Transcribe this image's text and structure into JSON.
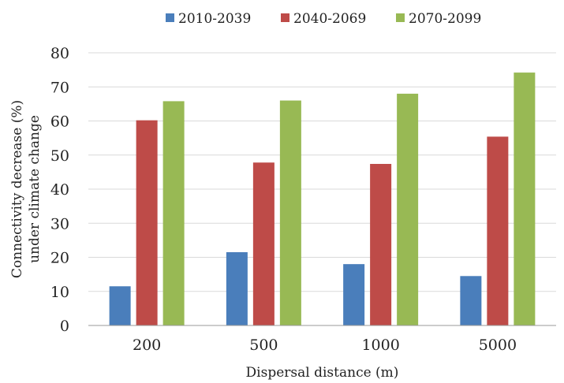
{
  "chart_data": {
    "type": "bar",
    "categories": [
      "200",
      "500",
      "1000",
      "5000"
    ],
    "series": [
      {
        "name": "2010-2039",
        "color": "#4a7ebb",
        "values": [
          11.5,
          21.5,
          18,
          14.5
        ]
      },
      {
        "name": "2040-2069",
        "color": "#be4b48",
        "values": [
          60.2,
          47.8,
          47.4,
          55.4
        ]
      },
      {
        "name": "2070-2099",
        "color": "#98b954",
        "values": [
          65.8,
          66,
          68,
          74.2
        ]
      }
    ],
    "xlabel": "Dispersal distance (m)",
    "ylabel": [
      "Connectivity decrease (%)",
      "under climate change"
    ],
    "ylim": [
      0,
      80
    ],
    "yticks": [
      "0",
      "10",
      "20",
      "30",
      "40",
      "50",
      "60",
      "70",
      "80"
    ],
    "grid": "horizontal",
    "legend_position": "top"
  }
}
